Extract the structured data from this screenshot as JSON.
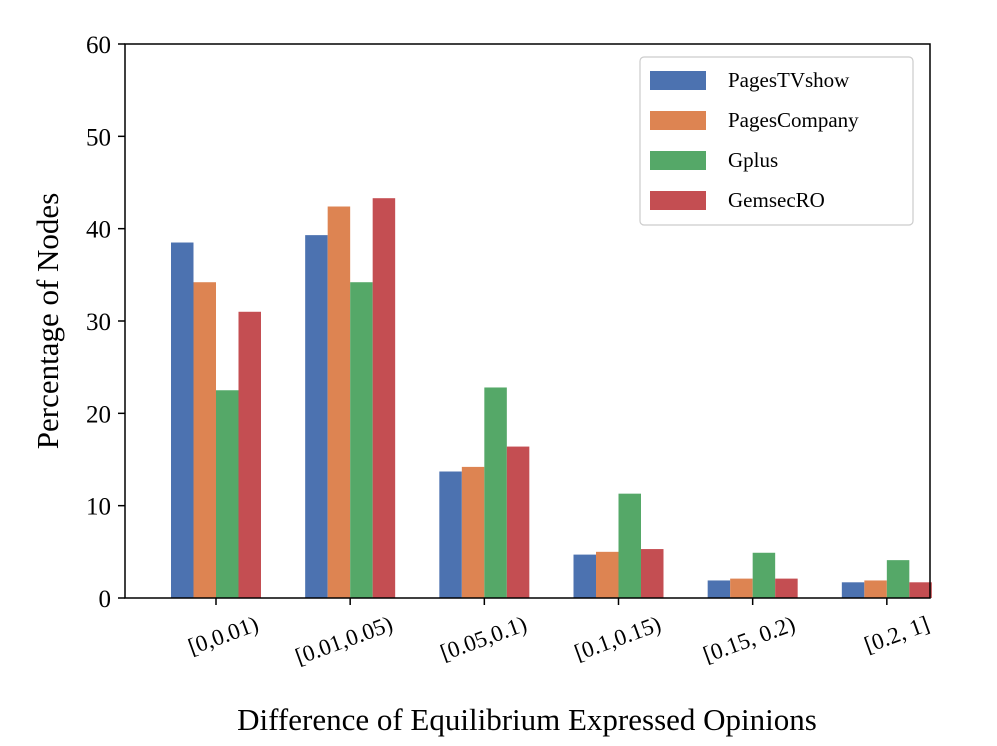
{
  "chart_data": {
    "type": "bar",
    "title": "",
    "xlabel": "Difference of Equilibrium Expressed Opinions",
    "ylabel": "Percentage of Nodes",
    "ylim": [
      0,
      60
    ],
    "yticks": [
      0,
      10,
      20,
      30,
      40,
      50,
      60
    ],
    "categories": [
      "[0,0.01)",
      "[0.01,0.05)",
      "[0.05,0.1)",
      "[0.1,0.15)",
      "[0.15, 0.2)",
      "[0.2, 1]"
    ],
    "series": [
      {
        "name": "PagesTVshow",
        "color": "#4c72b0",
        "values": [
          38.5,
          39.3,
          13.7,
          4.7,
          1.9,
          1.7
        ]
      },
      {
        "name": "PagesCompany",
        "color": "#dd8452",
        "values": [
          34.2,
          42.4,
          14.2,
          5.0,
          2.1,
          1.9
        ]
      },
      {
        "name": "Gplus",
        "color": "#55a868",
        "values": [
          22.5,
          34.2,
          22.8,
          11.3,
          4.9,
          4.1
        ]
      },
      {
        "name": "GemsecRO",
        "color": "#c44e52",
        "values": [
          31.0,
          43.3,
          16.4,
          5.3,
          2.1,
          1.7
        ]
      }
    ],
    "grid": false,
    "legend_position": "top-right"
  }
}
